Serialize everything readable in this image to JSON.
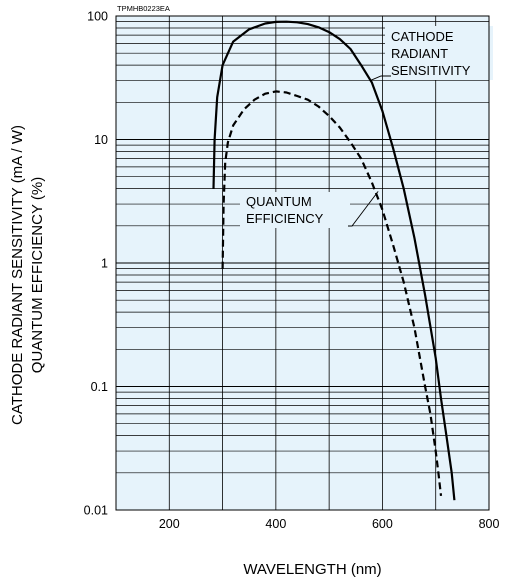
{
  "chart_data": {
    "type": "line",
    "code": "TPMHB0223EA",
    "xlabel": "WAVELENGTH (nm)",
    "ylabel_line1": "CATHODE RADIANT SENSITIVITY (mA / W)",
    "ylabel_line2": "QUANTUM EFFICIENCY (%)",
    "xlim": [
      100,
      800
    ],
    "ylim": [
      0.01,
      100
    ],
    "yscale": "log",
    "grid": true,
    "background_color": "#e6f3fb",
    "x_ticks": [
      200,
      400,
      600,
      800
    ],
    "x_tick_labels": [
      "200",
      "400",
      "600",
      "800"
    ],
    "y_ticks": [
      0.01,
      0.1,
      1,
      10,
      100
    ],
    "y_tick_labels": [
      "0.01",
      "0.1",
      "1",
      "10",
      "100"
    ],
    "series": [
      {
        "name": "CATHODE RADIANT SENSITIVITY",
        "style": "solid",
        "x": [
          283,
          285,
          290,
          300,
          320,
          350,
          380,
          400,
          420,
          440,
          460,
          480,
          500,
          520,
          540,
          560,
          580,
          600,
          620,
          640,
          660,
          680,
          700,
          710,
          720,
          730,
          735
        ],
        "y": [
          4,
          10,
          22,
          40,
          62,
          78,
          87,
          89.5,
          90,
          89,
          86,
          81,
          74,
          65,
          54,
          40,
          29,
          17,
          8.5,
          4,
          1.6,
          0.55,
          0.17,
          0.08,
          0.04,
          0.02,
          0.012
        ]
      },
      {
        "name": "QUANTUM EFFICIENCY",
        "style": "dashed",
        "x": [
          300,
          302,
          305,
          310,
          320,
          340,
          360,
          380,
          400,
          420,
          440,
          460,
          480,
          500,
          520,
          540,
          560,
          580,
          600,
          620,
          640,
          660,
          680,
          690,
          700,
          705,
          710
        ],
        "y": [
          0.9,
          3,
          6.5,
          9.5,
          13,
          17.5,
          21,
          23.5,
          24.5,
          24,
          22.5,
          21,
          18.5,
          15.5,
          12.5,
          9.5,
          7,
          4.5,
          2.7,
          1.4,
          0.7,
          0.3,
          0.1,
          0.06,
          0.03,
          0.02,
          0.013
        ]
      }
    ],
    "annotations": [
      {
        "lines": [
          "CATHODE",
          "RADIANT",
          "SENSITIVITY"
        ],
        "points_to": "CATHODE RADIANT SENSITIVITY"
      },
      {
        "lines": [
          "QUANTUM",
          "EFFICIENCY"
        ],
        "points_to": "QUANTUM EFFICIENCY"
      }
    ]
  }
}
